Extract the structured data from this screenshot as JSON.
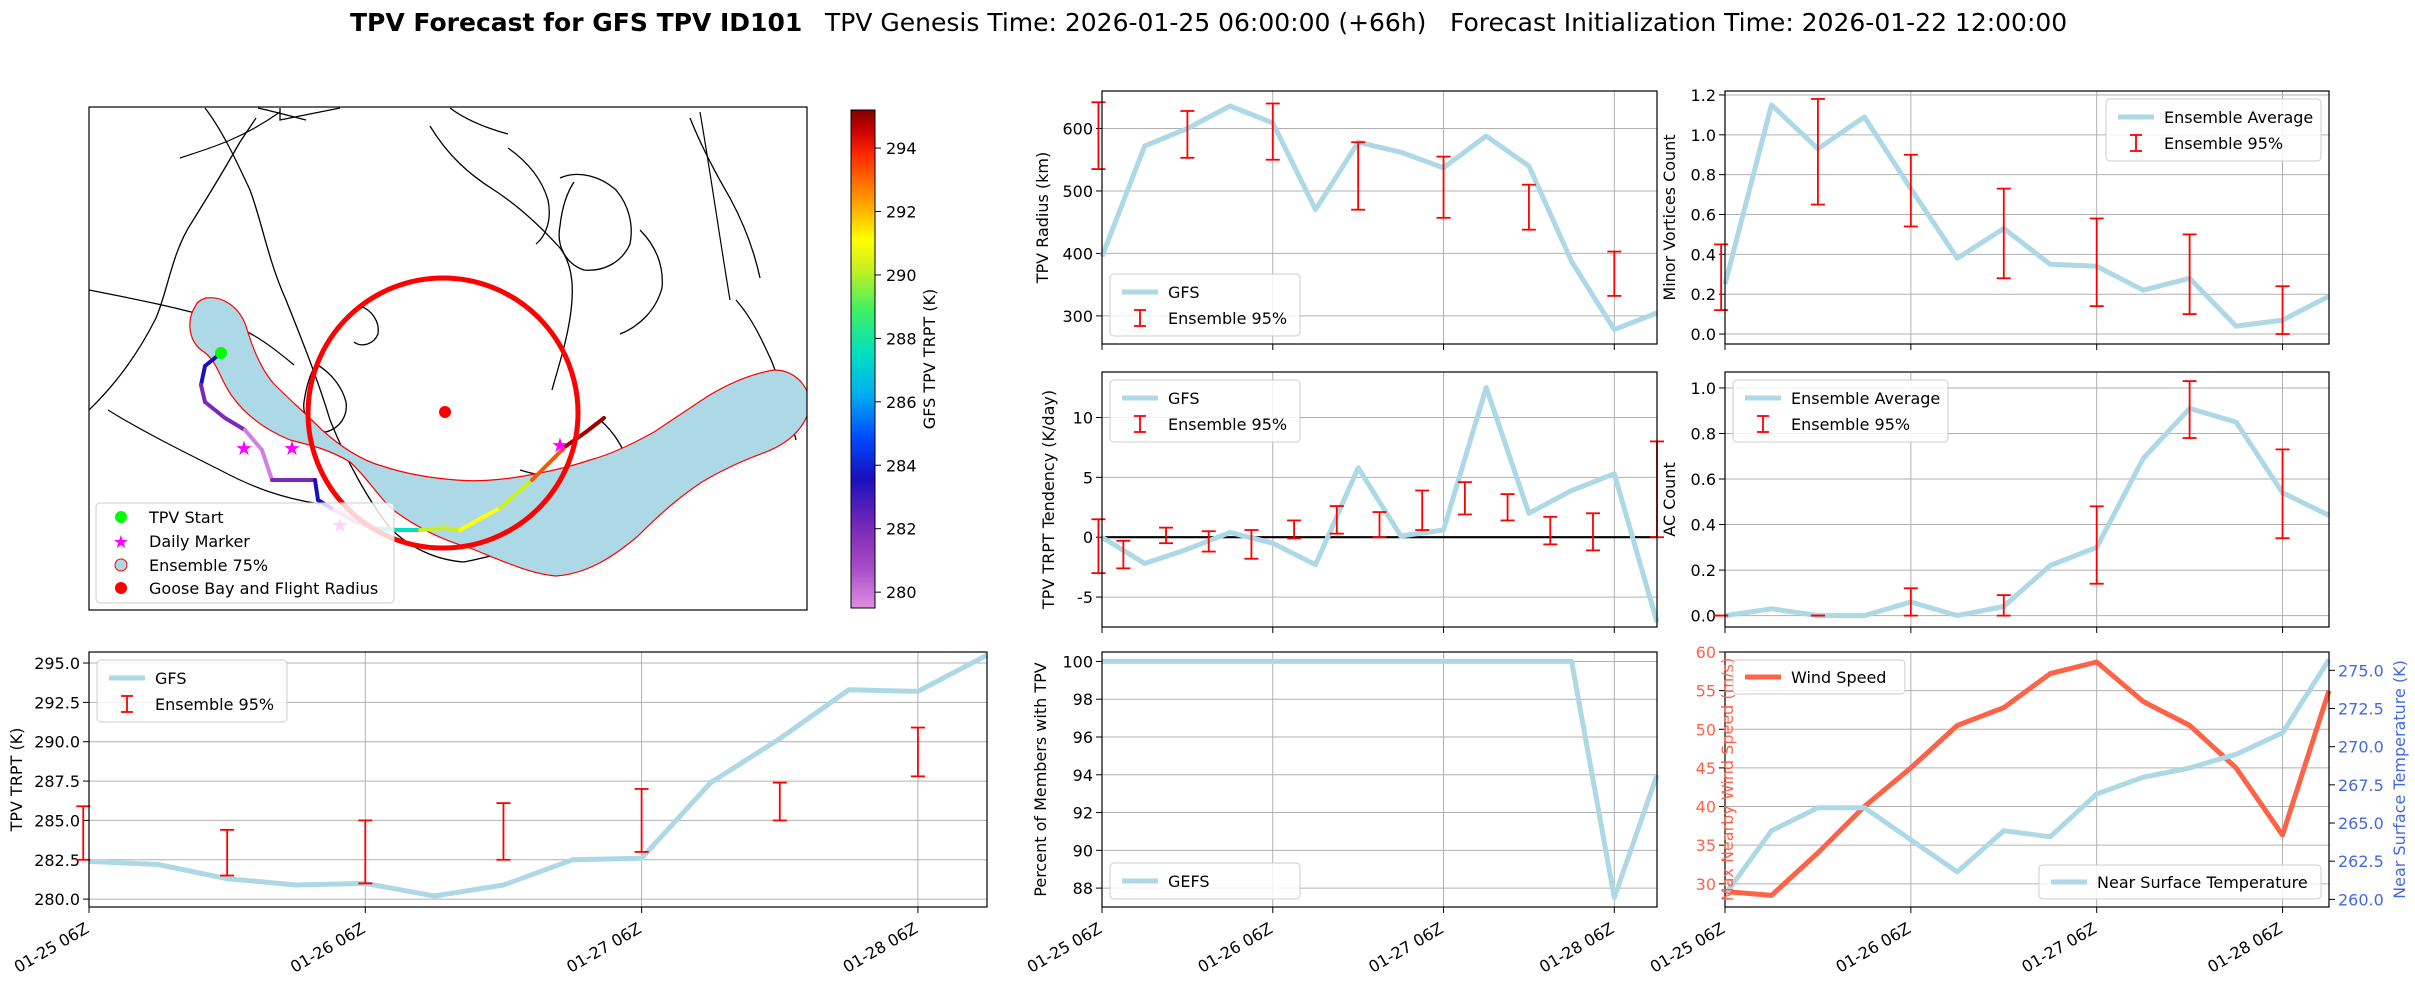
{
  "suptitle": {
    "bold": "TPV Forecast for GFS TPV ID101",
    "genesis": "TPV Genesis Time: 2026-01-25 06:00:00 (+66h)",
    "init": "Forecast Initialization Time: 2026-01-22 12:00:00"
  },
  "time_ticks": [
    "01-25 06Z",
    "01-26 06Z",
    "01-27 06Z",
    "01-28 06Z"
  ],
  "colors": {
    "gfs_line": "#add8e6",
    "errorbar": "#ff0000",
    "wind": "#ff6347",
    "near_surface_axis": "#4169e1",
    "ensemble_fill": "#add8e6",
    "flight_radius": "#ff0000",
    "start_marker": "#00ff00",
    "daily_marker": "#ff00ff"
  },
  "chart_data": [
    {
      "id": "map",
      "type": "map",
      "colorbar": {
        "label": "GFS TPV TRPT (K)",
        "ticks": [
          280,
          282,
          284,
          286,
          288,
          290,
          292,
          294
        ],
        "range": [
          279.5,
          295.2
        ]
      },
      "legend": [
        "TPV Start",
        "Daily Marker",
        "Ensemble 75%",
        "Goose Bay and Flight Radius"
      ],
      "track_trpt": [
        281,
        280.5,
        281,
        282,
        281.5,
        281,
        280.5,
        280,
        283,
        286,
        288,
        290,
        291,
        292.5,
        294,
        295
      ]
    },
    {
      "id": "radius",
      "type": "line",
      "ylabel": "TPV Radius (km)",
      "ylim": [
        255,
        660
      ],
      "yticks": [
        300,
        400,
        500,
        600
      ],
      "x": [
        0,
        6,
        12,
        18,
        24,
        30,
        36,
        42,
        48,
        54,
        60,
        66,
        72,
        78
      ],
      "series": [
        {
          "name": "GFS",
          "values": [
            395,
            572,
            600,
            636,
            609,
            470,
            578,
            562,
            537,
            588,
            540,
            387,
            278,
            305
          ]
        }
      ],
      "errorbars": [
        {
          "x": -0.5,
          "lo": 535,
          "hi": 642
        },
        {
          "x": 12,
          "lo": 553,
          "hi": 628
        },
        {
          "x": 24,
          "lo": 550,
          "hi": 640
        },
        {
          "x": 36,
          "lo": 470,
          "hi": 578
        },
        {
          "x": 48,
          "lo": 457,
          "hi": 555
        },
        {
          "x": 60,
          "lo": 438,
          "hi": 510
        },
        {
          "x": 72,
          "lo": 332,
          "hi": 403
        }
      ],
      "legend": [
        "GFS",
        "Ensemble 95%"
      ]
    },
    {
      "id": "minor",
      "type": "line",
      "ylabel": "Minor Vortices Count",
      "ylim": [
        -0.05,
        1.22
      ],
      "yticks": [
        0.0,
        0.2,
        0.4,
        0.6,
        0.8,
        1.0,
        1.2
      ],
      "x": [
        0,
        6,
        12,
        18,
        24,
        30,
        36,
        42,
        48,
        54,
        60,
        66,
        72,
        78
      ],
      "series": [
        {
          "name": "Ensemble Average",
          "values": [
            0.25,
            1.15,
            0.93,
            1.09,
            0.73,
            0.38,
            0.53,
            0.35,
            0.34,
            0.22,
            0.28,
            0.04,
            0.07,
            0.19
          ]
        }
      ],
      "errorbars": [
        {
          "x": -0.5,
          "lo": 0.12,
          "hi": 0.45
        },
        {
          "x": 12,
          "lo": 0.65,
          "hi": 1.18
        },
        {
          "x": 24,
          "lo": 0.54,
          "hi": 0.9
        },
        {
          "x": 36,
          "lo": 0.28,
          "hi": 0.73
        },
        {
          "x": 48,
          "lo": 0.14,
          "hi": 0.58
        },
        {
          "x": 60,
          "lo": 0.1,
          "hi": 0.5
        },
        {
          "x": 72,
          "lo": 0.0,
          "hi": 0.24
        }
      ],
      "legend": [
        "Ensemble Average",
        "Ensemble 95%"
      ]
    },
    {
      "id": "tendency",
      "type": "line",
      "ylabel": "TPV TRPT Tendency (K/day)",
      "ylim": [
        -7.5,
        13.8
      ],
      "yticks": [
        -5,
        0,
        5,
        10
      ],
      "hline": 0,
      "x": [
        0,
        6,
        12,
        18,
        24,
        30,
        36,
        42,
        48,
        54,
        60,
        66,
        72,
        78
      ],
      "series": [
        {
          "name": "GFS",
          "values": [
            0,
            -2.2,
            -1,
            0.4,
            -0.5,
            -2.3,
            5.8,
            0.1,
            0.6,
            12.5,
            2,
            3.9,
            5.3,
            -7.1
          ]
        }
      ],
      "errorbars": [
        {
          "x": -0.5,
          "lo": -3,
          "hi": 1.5
        },
        {
          "x": 3,
          "lo": -2.6,
          "hi": -0.3
        },
        {
          "x": 9,
          "lo": -0.5,
          "hi": 0.8
        },
        {
          "x": 15,
          "lo": -1.2,
          "hi": 0.5
        },
        {
          "x": 21,
          "lo": -1.8,
          "hi": 0.6
        },
        {
          "x": 27,
          "lo": -0.1,
          "hi": 1.4
        },
        {
          "x": 33,
          "lo": 0.3,
          "hi": 2.6
        },
        {
          "x": 39,
          "lo": 0.0,
          "hi": 2.1
        },
        {
          "x": 45,
          "lo": 0.6,
          "hi": 3.9
        },
        {
          "x": 51,
          "lo": 1.9,
          "hi": 4.6
        },
        {
          "x": 57,
          "lo": 1.4,
          "hi": 3.6
        },
        {
          "x": 63,
          "lo": -0.6,
          "hi": 1.7
        },
        {
          "x": 69,
          "lo": -1.1,
          "hi": 2.0
        },
        {
          "x": 78,
          "lo": 0.0,
          "hi": 8.0
        }
      ],
      "legend": [
        "GFS",
        "Ensemble 95%"
      ]
    },
    {
      "id": "ac",
      "type": "line",
      "ylabel": "AC Count",
      "ylim": [
        -0.05,
        1.07
      ],
      "yticks": [
        0.0,
        0.2,
        0.4,
        0.6,
        0.8,
        1.0
      ],
      "x": [
        0,
        6,
        12,
        18,
        24,
        30,
        36,
        42,
        48,
        54,
        60,
        66,
        72,
        78
      ],
      "series": [
        {
          "name": "Ensemble Average",
          "values": [
            0.0,
            0.03,
            0.0,
            0.0,
            0.06,
            0.0,
            0.04,
            0.22,
            0.3,
            0.69,
            0.91,
            0.85,
            0.54,
            0.44
          ]
        }
      ],
      "errorbars": [
        {
          "x": -0.5,
          "lo": 0.0,
          "hi": 0.0
        },
        {
          "x": 12,
          "lo": 0.0,
          "hi": 0.0
        },
        {
          "x": 24,
          "lo": 0.0,
          "hi": 0.12
        },
        {
          "x": 36,
          "lo": 0.0,
          "hi": 0.09
        },
        {
          "x": 48,
          "lo": 0.14,
          "hi": 0.48
        },
        {
          "x": 60,
          "lo": 0.78,
          "hi": 1.03
        },
        {
          "x": 72,
          "lo": 0.34,
          "hi": 0.73
        }
      ],
      "legend": [
        "Ensemble Average",
        "Ensemble 95%"
      ]
    },
    {
      "id": "trpt",
      "type": "line",
      "ylabel": "TPV TRPT (K)",
      "ylim": [
        279.5,
        295.7
      ],
      "yticks": [
        280.0,
        282.5,
        285.0,
        287.5,
        290.0,
        292.5,
        295.0
      ],
      "x": [
        0,
        6,
        12,
        18,
        24,
        30,
        36,
        42,
        48,
        54,
        60,
        66,
        72,
        78
      ],
      "series": [
        {
          "name": "GFS",
          "values": [
            282.4,
            282.2,
            281.3,
            280.9,
            281.0,
            280.2,
            280.9,
            282.5,
            282.6,
            287.4,
            290.2,
            293.3,
            293.2,
            295.5
          ]
        }
      ],
      "errorbars": [
        {
          "x": -0.5,
          "lo": 282.5,
          "hi": 285.9
        },
        {
          "x": 12,
          "lo": 281.5,
          "hi": 284.4
        },
        {
          "x": 24,
          "lo": 281.0,
          "hi": 285.0
        },
        {
          "x": 36,
          "lo": 282.5,
          "hi": 286.1
        },
        {
          "x": 48,
          "lo": 283.0,
          "hi": 287.0
        },
        {
          "x": 60,
          "lo": 285.0,
          "hi": 287.4
        },
        {
          "x": 72,
          "lo": 287.8,
          "hi": 290.9
        }
      ],
      "legend": [
        "GFS",
        "Ensemble 95%"
      ]
    },
    {
      "id": "percent",
      "type": "line",
      "ylabel": "Percent of Members with TPV",
      "ylim": [
        87.0,
        100.5
      ],
      "yticks": [
        88,
        90,
        92,
        94,
        96,
        98,
        100
      ],
      "x": [
        0,
        6,
        12,
        18,
        24,
        30,
        36,
        42,
        48,
        54,
        60,
        66,
        72,
        78
      ],
      "series": [
        {
          "name": "GEFS",
          "values": [
            100,
            100,
            100,
            100,
            100,
            100,
            100,
            100,
            100,
            100,
            100,
            100,
            87.5,
            94
          ]
        }
      ],
      "legend": [
        "GEFS"
      ]
    },
    {
      "id": "wind",
      "type": "line",
      "ylabel": "Max Nearby Wind Speed (m/s)",
      "ylabel2": "Near Surface Temperature (K)",
      "ylim": [
        27.0,
        60.0
      ],
      "yticks": [
        30,
        35,
        40,
        45,
        50,
        55,
        60
      ],
      "ylim2": [
        259.5,
        276.2
      ],
      "yticks2": [
        260.0,
        262.5,
        265.0,
        267.5,
        270.0,
        272.5,
        275.0
      ],
      "x": [
        0,
        6,
        12,
        18,
        24,
        30,
        36,
        42,
        48,
        54,
        60,
        66,
        72,
        78
      ],
      "series": [
        {
          "name": "Wind Speed",
          "values": [
            29.0,
            28.5,
            34.0,
            40.0,
            45.0,
            50.5,
            52.8,
            57.2,
            58.7,
            53.6,
            50.5,
            45.0,
            36.3,
            55.0
          ],
          "axis": "left"
        },
        {
          "name": "Near Surface Temperature",
          "values": [
            260.3,
            264.5,
            266.0,
            266.0,
            263.9,
            261.8,
            264.5,
            264.1,
            266.9,
            268.0,
            268.6,
            269.5,
            270.9,
            275.7
          ],
          "axis": "right"
        }
      ],
      "legend": [
        "Wind Speed",
        "Near Surface Temperature"
      ]
    }
  ]
}
